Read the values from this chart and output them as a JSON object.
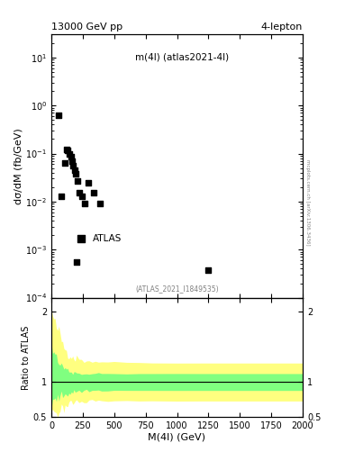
{
  "title_top": "13000 GeV pp",
  "title_right": "4-lepton",
  "annotation": "m(4l) (atlas2021-4l)",
  "watermark": "(ATLAS_2021_I1849535)",
  "ylabel_main": "dσ/dM (fb/GeV)",
  "xlabel": "M(4l) (GeV)",
  "ylabel_ratio": "Ratio to ATLAS",
  "right_label": "mcplots.cern.ch [arXiv:1306.3436]",
  "data_x": [
    55,
    80,
    105,
    120,
    130,
    145,
    155,
    165,
    175,
    185,
    195,
    210,
    225,
    245,
    265,
    295,
    340,
    390,
    200,
    1250
  ],
  "data_y": [
    0.62,
    0.013,
    0.065,
    0.12,
    0.115,
    0.1,
    0.085,
    0.07,
    0.055,
    0.045,
    0.038,
    0.027,
    0.015,
    0.013,
    0.009,
    0.025,
    0.015,
    0.009,
    0.00055,
    0.00038
  ],
  "ylim_main": [
    0.0001,
    30
  ],
  "xlim": [
    0,
    2000
  ],
  "ylim_ratio": [
    0.5,
    2.2
  ],
  "ratio_x": [
    0,
    10,
    20,
    30,
    40,
    50,
    60,
    70,
    80,
    90,
    100,
    110,
    120,
    130,
    140,
    150,
    160,
    170,
    180,
    190,
    200,
    220,
    240,
    260,
    280,
    300,
    325,
    350,
    375,
    400,
    450,
    500,
    600,
    700,
    800,
    1000,
    1200,
    1500,
    2000
  ],
  "ratio_upper_yellow": [
    2.0,
    1.95,
    1.85,
    1.8,
    1.78,
    1.75,
    1.7,
    1.65,
    1.6,
    1.55,
    1.5,
    1.48,
    1.44,
    1.42,
    1.4,
    1.38,
    1.37,
    1.36,
    1.35,
    1.34,
    1.34,
    1.33,
    1.32,
    1.31,
    1.31,
    1.3,
    1.3,
    1.29,
    1.29,
    1.29,
    1.29,
    1.28,
    1.28,
    1.28,
    1.27,
    1.27,
    1.27,
    1.27,
    1.27
  ],
  "ratio_lower_yellow": [
    0.55,
    0.56,
    0.57,
    0.58,
    0.58,
    0.59,
    0.6,
    0.61,
    0.63,
    0.64,
    0.65,
    0.66,
    0.67,
    0.68,
    0.69,
    0.7,
    0.7,
    0.71,
    0.71,
    0.72,
    0.72,
    0.72,
    0.73,
    0.73,
    0.73,
    0.73,
    0.73,
    0.73,
    0.73,
    0.73,
    0.73,
    0.73,
    0.73,
    0.73,
    0.73,
    0.73,
    0.73,
    0.73,
    0.73
  ],
  "ratio_upper_green": [
    1.55,
    1.5,
    1.44,
    1.38,
    1.34,
    1.3,
    1.28,
    1.26,
    1.24,
    1.22,
    1.2,
    1.19,
    1.18,
    1.17,
    1.16,
    1.15,
    1.15,
    1.14,
    1.14,
    1.14,
    1.13,
    1.13,
    1.13,
    1.12,
    1.12,
    1.12,
    1.12,
    1.12,
    1.12,
    1.12,
    1.12,
    1.12,
    1.12,
    1.12,
    1.12,
    1.12,
    1.12,
    1.12,
    1.12
  ],
  "ratio_lower_green": [
    0.68,
    0.7,
    0.72,
    0.74,
    0.76,
    0.77,
    0.78,
    0.79,
    0.8,
    0.81,
    0.82,
    0.83,
    0.83,
    0.84,
    0.84,
    0.85,
    0.85,
    0.86,
    0.86,
    0.87,
    0.87,
    0.87,
    0.87,
    0.88,
    0.88,
    0.88,
    0.88,
    0.88,
    0.88,
    0.88,
    0.88,
    0.88,
    0.88,
    0.88,
    0.88,
    0.88,
    0.88,
    0.88,
    0.88
  ],
  "color_yellow": "#ffff80",
  "color_green": "#80ff80",
  "color_data": "black",
  "marker": "s",
  "marker_size": 5,
  "noise_seed": 42,
  "noise_amplitude_yellow": 0.08,
  "noise_amplitude_green": 0.05
}
